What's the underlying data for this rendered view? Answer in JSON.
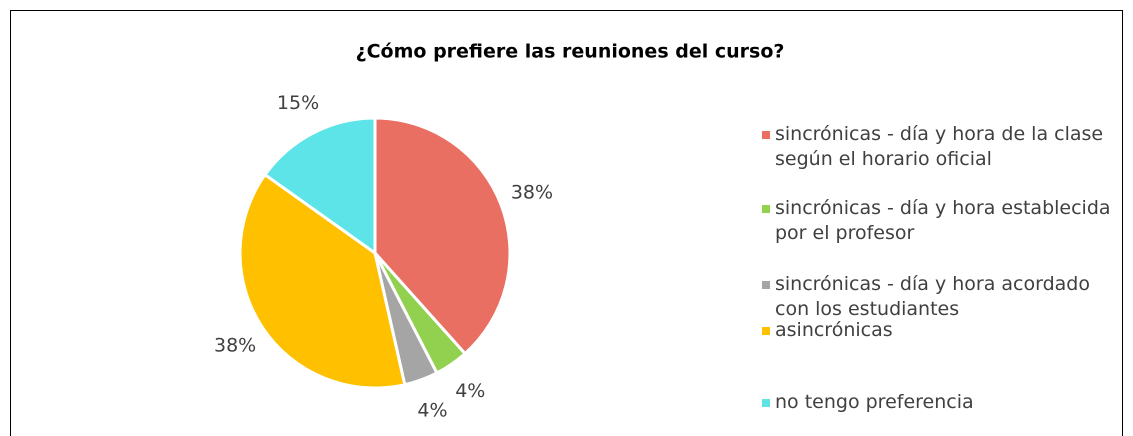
{
  "chart_data": {
    "type": "pie",
    "title": "¿Cómo prefiere las reuniones del curso?",
    "categories": [
      "sincrónicas - día y hora de la clase según el horario oficial",
      "sincrónicas - día y hora establecida por el profesor",
      "sincrónicas - día y hora acordado con los estudiantes",
      "asincrónicas",
      "no tengo preferencia"
    ],
    "values": [
      38,
      4,
      4,
      38,
      15
    ],
    "value_labels": [
      "38%",
      "4%",
      "4%",
      "38%",
      "15%"
    ],
    "colors": [
      "#ea6f63",
      "#92d050",
      "#a5a5a5",
      "#ffc000",
      "#5ce4e8"
    ],
    "legend": "right"
  }
}
